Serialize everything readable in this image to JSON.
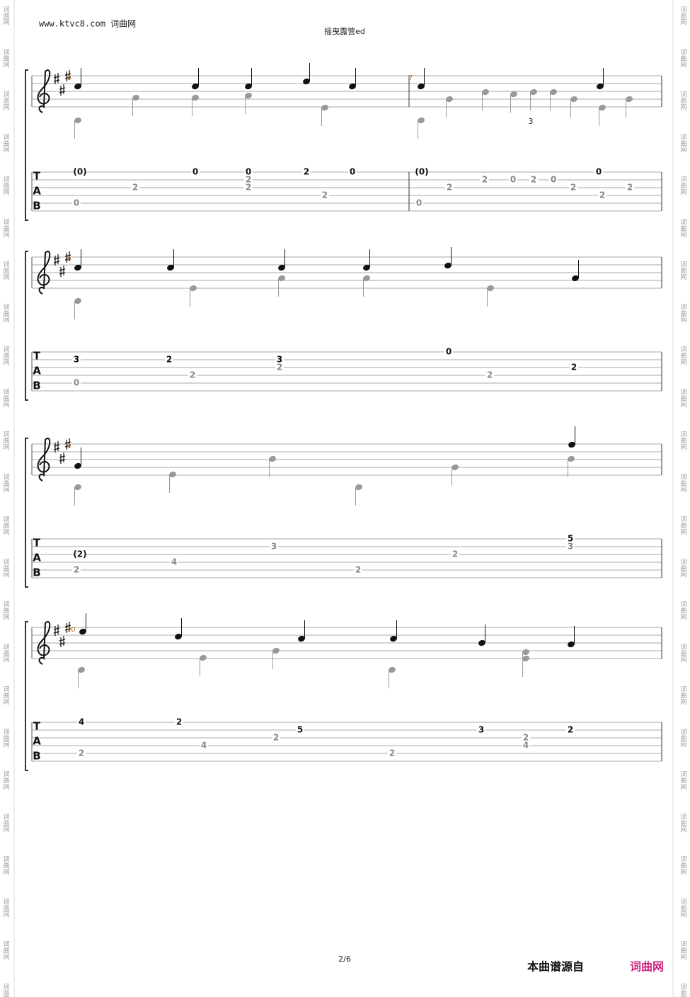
{
  "header": {
    "site": "www.ktvc8.com 词曲网",
    "title": "摇曳露营ed"
  },
  "watermark": "词曲网",
  "tab_label": [
    "T",
    "A",
    "B"
  ],
  "triplet": "3",
  "systems": [
    {
      "measures": [
        "6",
        "7"
      ],
      "tab": [
        "(0)",
        "2",
        "0",
        "0",
        "0",
        "2",
        "2",
        "2",
        "2",
        "0",
        "(0)",
        "2",
        "0",
        "2",
        "0",
        "2",
        "0",
        "2",
        "0",
        "2",
        "2"
      ]
    },
    {
      "measures": [
        "8"
      ],
      "tab": [
        "3",
        "0",
        "2",
        "2",
        "3",
        "2",
        "0",
        "2",
        "2"
      ]
    },
    {
      "measures": [
        "9"
      ],
      "tab": [
        "(2)",
        "2",
        "4",
        "3",
        "2",
        "2",
        "5",
        "3"
      ]
    },
    {
      "measures": [
        "10"
      ],
      "tab": [
        "4",
        "2",
        "2",
        "4",
        "2",
        "5",
        "2",
        "3",
        "2",
        "4",
        "2"
      ]
    }
  ],
  "footer": {
    "page": "2/6",
    "source": "本曲谱源自",
    "site": "词曲网"
  }
}
